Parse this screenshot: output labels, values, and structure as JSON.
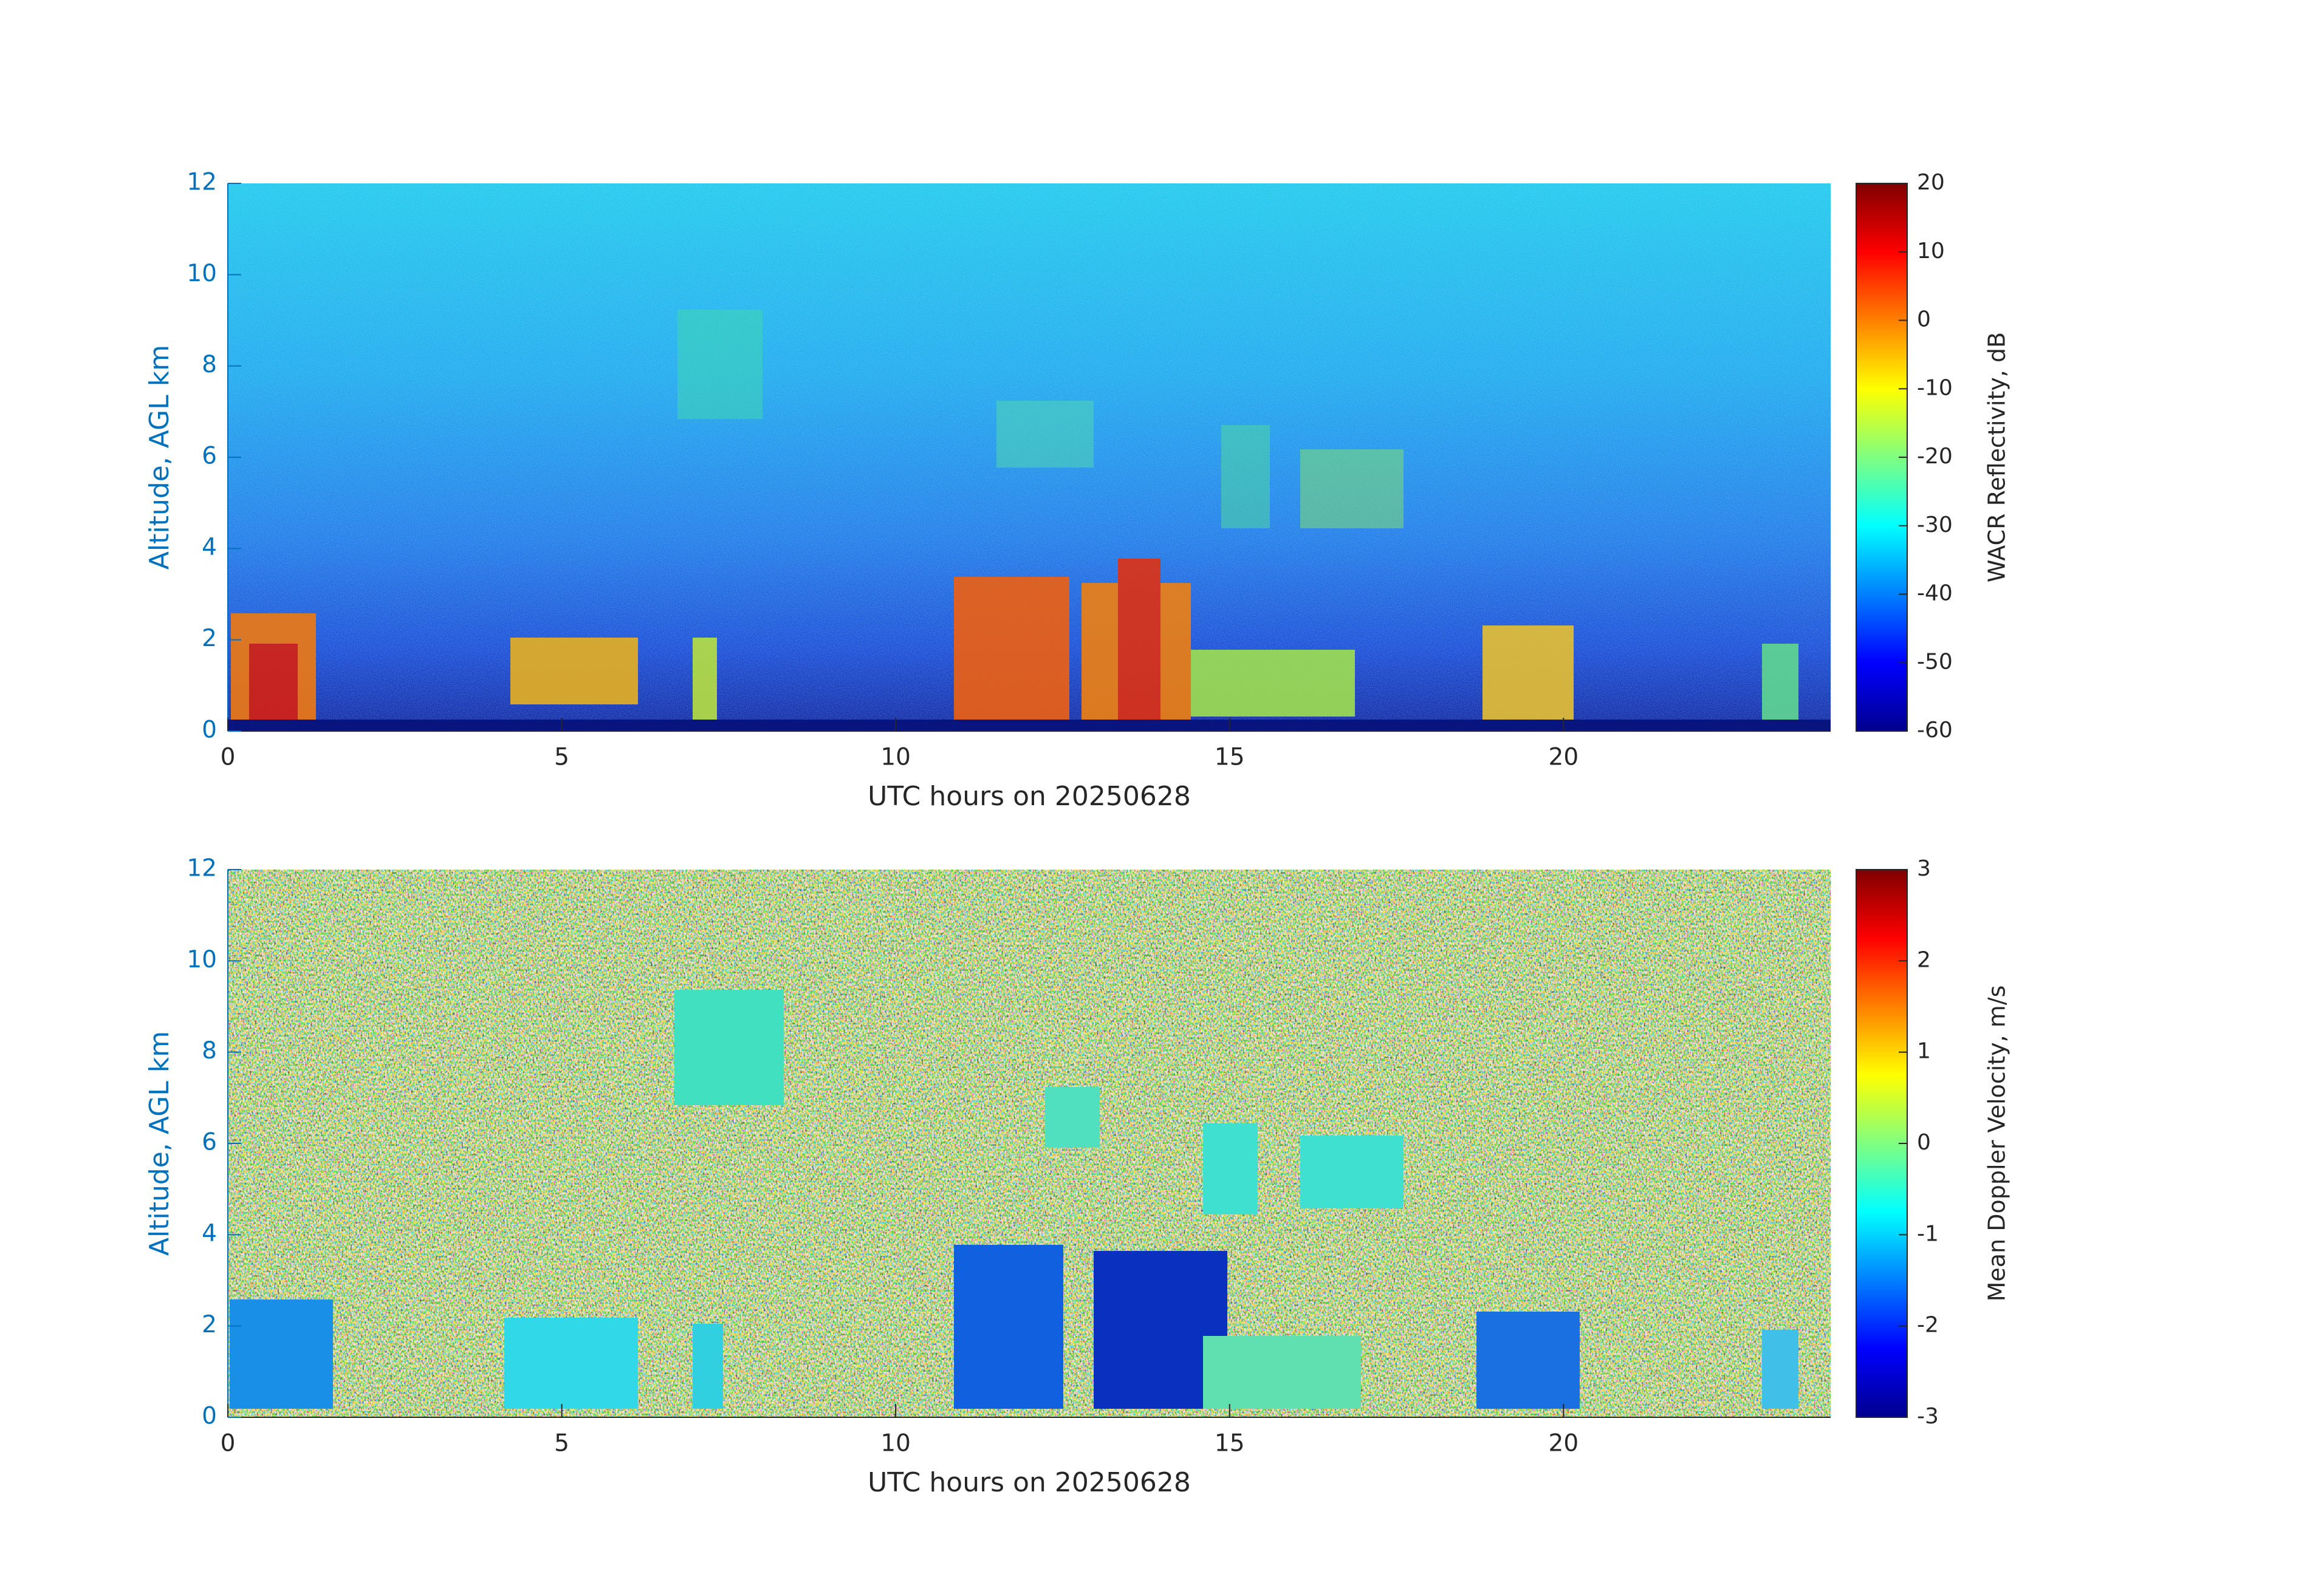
{
  "chart_data": [
    {
      "type": "heatmap",
      "xlabel": "UTC hours on 20250628",
      "ylabel": "Altitude, AGL km",
      "xlim": [
        0,
        24
      ],
      "xticks": [
        0,
        5,
        10,
        15,
        20
      ],
      "ylim": [
        0,
        12
      ],
      "yticks": [
        0,
        2,
        4,
        6,
        8,
        10,
        12
      ],
      "colorbar": {
        "label": "WACR Reflectivity, dB",
        "lim": [
          -60,
          20
        ],
        "ticks": [
          -60,
          -50,
          -40,
          -30,
          -20,
          -10,
          0,
          10,
          20
        ],
        "colormap": "jet"
      }
    },
    {
      "type": "heatmap",
      "xlabel": "UTC hours on 20250628",
      "ylabel": "Altitude, AGL km",
      "xlim": [
        0,
        24
      ],
      "xticks": [
        0,
        5,
        10,
        15,
        20
      ],
      "ylim": [
        0,
        12
      ],
      "yticks": [
        0,
        2,
        4,
        6,
        8,
        10,
        12
      ],
      "colorbar": {
        "label": "Mean Doppler Velocity, m/s",
        "lim": [
          -3,
          3
        ],
        "ticks": [
          -3,
          -2,
          -1,
          0,
          1,
          2,
          3
        ],
        "colormap": "jet"
      }
    }
  ]
}
